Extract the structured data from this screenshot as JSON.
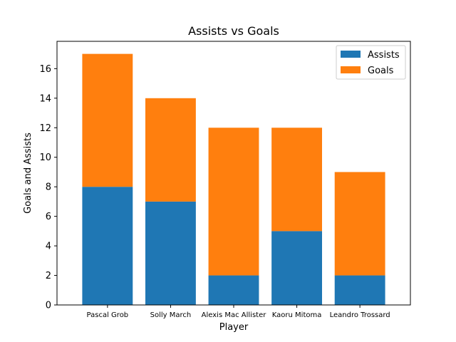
{
  "chart_data": {
    "type": "bar",
    "stacked": true,
    "title": "Assists vs Goals",
    "xlabel": "Player",
    "ylabel": "Goals and Assists",
    "categories": [
      "Pascal Grob",
      "Solly March",
      "Alexis Mac Allister",
      "Kaoru Mitoma",
      "Leandro Trossard"
    ],
    "series": [
      {
        "name": "Assists",
        "values": [
          8,
          7,
          2,
          5,
          2
        ],
        "color": "#1f77b4"
      },
      {
        "name": "Goals",
        "values": [
          9,
          7,
          10,
          7,
          7
        ],
        "color": "#ff7f0e"
      }
    ],
    "ylim": [
      0,
      17.85
    ],
    "yticks": [
      0,
      2,
      4,
      6,
      8,
      10,
      12,
      14,
      16
    ],
    "grid": false,
    "legend_position": "top-right"
  }
}
